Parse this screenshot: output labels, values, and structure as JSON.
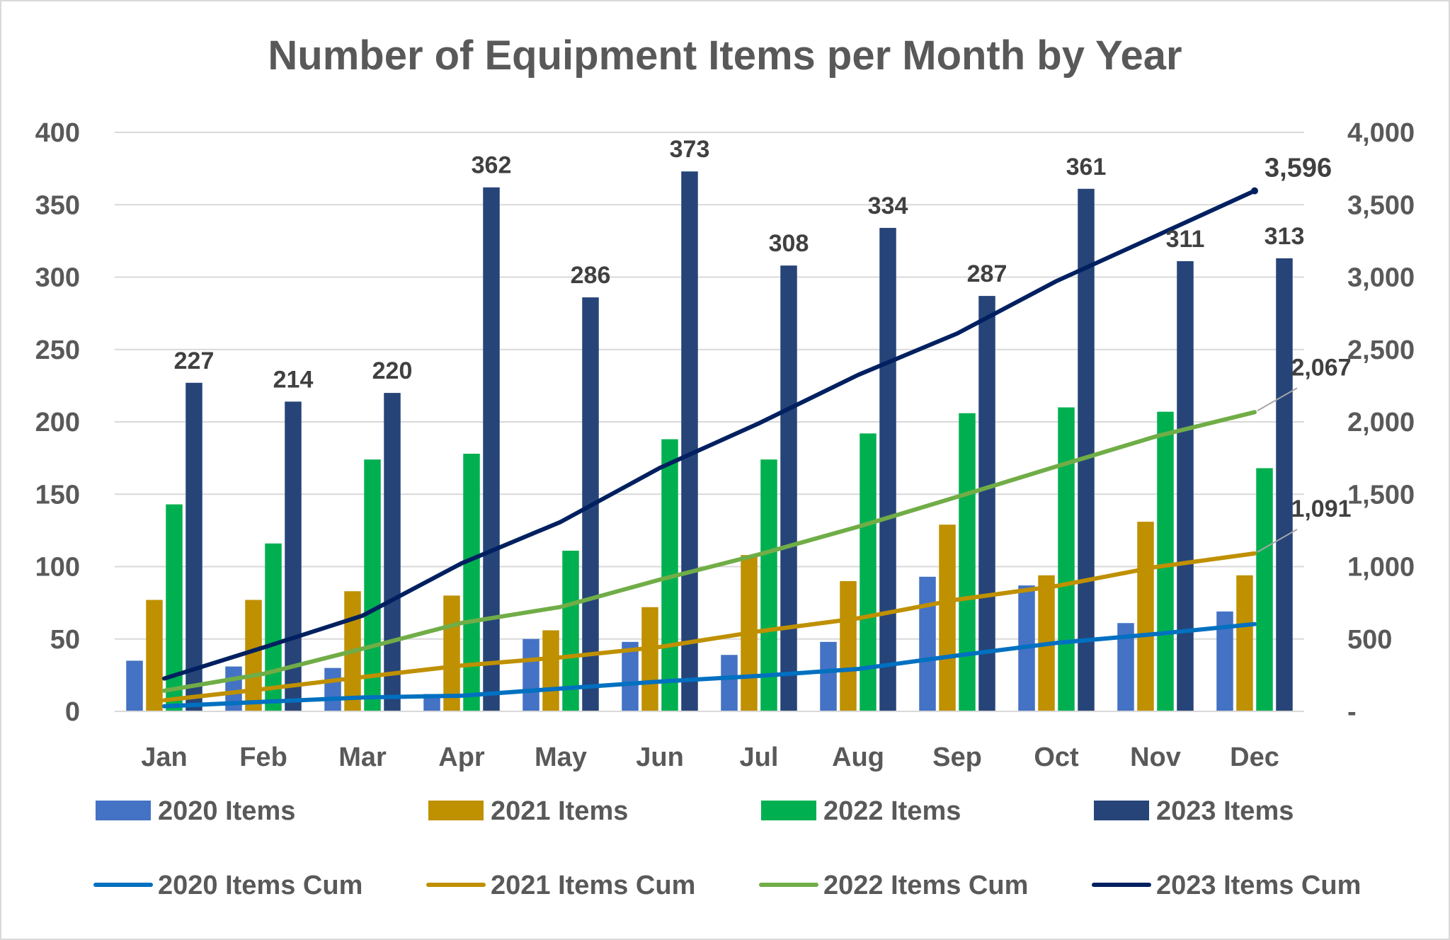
{
  "chart_data": {
    "type": "bar",
    "title": "Number of Equipment Items per Month by Year",
    "categories": [
      "Jan",
      "Feb",
      "Mar",
      "Apr",
      "May",
      "Jun",
      "Jul",
      "Aug",
      "Sep",
      "Oct",
      "Nov",
      "Dec"
    ],
    "y_left": {
      "range": [
        0,
        400
      ],
      "ticks": [
        0,
        50,
        100,
        150,
        200,
        250,
        300,
        350,
        400
      ],
      "tick_labels": [
        "0",
        "50",
        "100",
        "150",
        "200",
        "250",
        "300",
        "350",
        "400"
      ]
    },
    "y_right": {
      "range": [
        0,
        4000
      ],
      "ticks": [
        0,
        500,
        1000,
        1500,
        2000,
        2500,
        3000,
        3500,
        4000
      ],
      "tick_labels": [
        "-",
        "500",
        "1,000",
        "1,500",
        "2,000",
        "2,500",
        "3,000",
        "3,500",
        "4,000"
      ]
    },
    "grid": "horizontal",
    "legend_position": "bottom",
    "bar_series": [
      {
        "name": "2020 Items",
        "color": "#4472C4",
        "values": [
          35,
          31,
          30,
          12,
          50,
          48,
          39,
          48,
          93,
          87,
          61,
          69
        ]
      },
      {
        "name": "2021 Items",
        "color": "#BF9000",
        "values": [
          77,
          77,
          83,
          80,
          56,
          72,
          108,
          90,
          129,
          94,
          131,
          94
        ]
      },
      {
        "name": "2022 Items",
        "color": "#00B050",
        "values": [
          143,
          116,
          174,
          178,
          111,
          188,
          174,
          192,
          206,
          210,
          207,
          168
        ]
      },
      {
        "name": "2023 Items",
        "color": "#264478",
        "values": [
          227,
          214,
          220,
          362,
          286,
          373,
          308,
          334,
          287,
          361,
          311,
          313
        ],
        "data_labels": [
          "227",
          "214",
          "220",
          "362",
          "286",
          "373",
          "308",
          "334",
          "287",
          "361",
          "311",
          "313"
        ]
      }
    ],
    "line_series": [
      {
        "name": "2020 Items Cum",
        "color": "#0070C0",
        "axis": "right",
        "values": [
          35,
          66,
          96,
          108,
          158,
          206,
          245,
          293,
          386,
          473,
          534,
          603
        ]
      },
      {
        "name": "2021 Items Cum",
        "color": "#BF9000",
        "axis": "right",
        "values": [
          77,
          154,
          237,
          317,
          373,
          445,
          553,
          643,
          772,
          866,
          997,
          1091
        ],
        "end_label": "1,091"
      },
      {
        "name": "2022 Items Cum",
        "color": "#70AD47",
        "axis": "right",
        "values": [
          143,
          259,
          433,
          611,
          722,
          910,
          1084,
          1276,
          1482,
          1692,
          1899,
          2067
        ],
        "end_label": "2,067"
      },
      {
        "name": "2023 Items Cum",
        "color": "#002060",
        "axis": "right",
        "values": [
          227,
          441,
          661,
          1023,
          1309,
          1682,
          1990,
          2324,
          2611,
          2972,
          3283,
          3596
        ],
        "end_label": "3,596"
      }
    ]
  }
}
